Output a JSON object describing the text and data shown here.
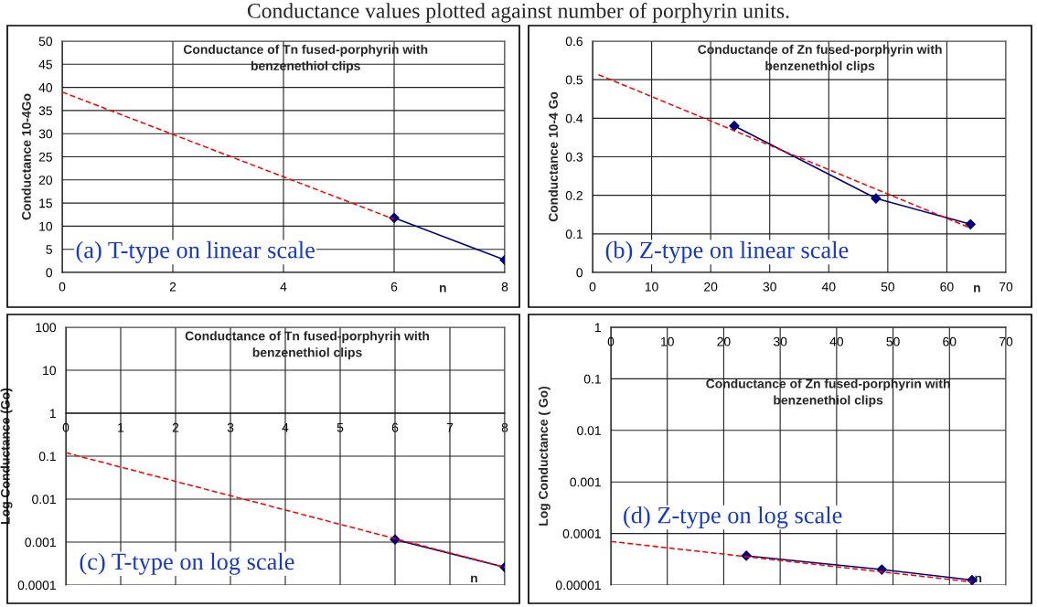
{
  "chart_data": [
    {
      "type": "line",
      "title": "Conductance of Tn fused-porphyrin with\nbenzenethiol clips",
      "xlabel": "n",
      "ylabel": "Conductance 10-4Go",
      "annotations": [
        "Conductance values plotted against number of porphyrin units.",
        "(a) T-type on linear scale"
      ],
      "xlim": [
        0,
        8
      ],
      "xticks": [
        0,
        2,
        4,
        6,
        8
      ],
      "ylim": [
        0,
        50
      ],
      "yticks": [
        0,
        5,
        10,
        15,
        20,
        25,
        30,
        35,
        40,
        45,
        50
      ],
      "grid": true,
      "series": [
        {
          "x": [
            6,
            8
          ],
          "values": [
            11.8,
            2.7
          ],
          "color": "#000080",
          "marker": "diamond",
          "line_style": "solid"
        },
        {
          "x": [
            0,
            6
          ],
          "values": [
            39,
            11.5
          ],
          "color": "#ff0000",
          "marker": "none",
          "line_style": "dashed"
        }
      ]
    },
    {
      "type": "line",
      "title": "Conductance of Zn fused-porphyrin with\nbenzenethiol clips",
      "xlabel": "n",
      "ylabel": "Conductance 10-4 Go",
      "annotations": [
        "(b) Z-type on linear scale"
      ],
      "xlim": [
        0,
        70
      ],
      "xticks": [
        0,
        10,
        20,
        30,
        40,
        50,
        60,
        70
      ],
      "ylim": [
        0,
        0.6
      ],
      "yticks": [
        0,
        0.1,
        0.2,
        0.3,
        0.4,
        0.5,
        0.6
      ],
      "grid": true,
      "series": [
        {
          "x": [
            24,
            48,
            64
          ],
          "values": [
            0.38,
            0.192,
            0.125
          ],
          "color": "#000080",
          "marker": "diamond",
          "line_style": "solid"
        },
        {
          "x": [
            1,
            64
          ],
          "values": [
            0.513,
            0.115
          ],
          "color": "#ff0000",
          "marker": "none",
          "line_style": "dashed"
        }
      ]
    },
    {
      "type": "line",
      "title": "Conductance of Tn fused-porphyrin with\nbenzenethiol clips",
      "xlabel": "n",
      "ylabel": "Log Conductance (Go)",
      "annotations": [
        "(c) T-type on log scale"
      ],
      "log": true,
      "xlim": [
        0,
        8
      ],
      "xticks": [
        0,
        1,
        2,
        3,
        4,
        5,
        6,
        7,
        8
      ],
      "ylim": [
        0.0001,
        100
      ],
      "yticks": [
        100,
        10,
        1,
        0.1,
        0.01,
        0.001,
        0.0001
      ],
      "grid": true,
      "series": [
        {
          "x": [
            6,
            8
          ],
          "values": [
            0.00115,
            0.00026
          ],
          "color": "#000080",
          "marker": "diamond",
          "line_style": "solid"
        },
        {
          "x": [
            0,
            8
          ],
          "values": [
            0.12,
            0.00026
          ],
          "color": "#ff0000",
          "marker": "none",
          "line_style": "dashed"
        }
      ]
    },
    {
      "type": "line",
      "title": "Conductance of Zn fused-porphyrin with\nbenzenethiol clips",
      "xlabel": "n",
      "ylabel": "Log Conductance ( Go)",
      "annotations": [
        "(d) Z-type on log scale"
      ],
      "log": true,
      "xlim": [
        0,
        70
      ],
      "xticks": [
        0,
        10,
        20,
        30,
        40,
        50,
        60,
        70
      ],
      "ylim": [
        1e-05,
        1
      ],
      "yticks": [
        1,
        0.1,
        0.01,
        0.001,
        0.0001,
        {
          "value": 1e-05,
          "label": "0.00001"
        }
      ],
      "grid": true,
      "series": [
        {
          "x": [
            24,
            48,
            64
          ],
          "values": [
            3.7e-05,
            2e-05,
            1.25e-05
          ],
          "color": "#000080",
          "marker": "diamond",
          "line_style": "solid"
        },
        {
          "x": [
            0,
            64
          ],
          "values": [
            7e-05,
            1.15e-05
          ],
          "color": "#ff0000",
          "marker": "none",
          "line_style": "dashed"
        }
      ]
    }
  ]
}
